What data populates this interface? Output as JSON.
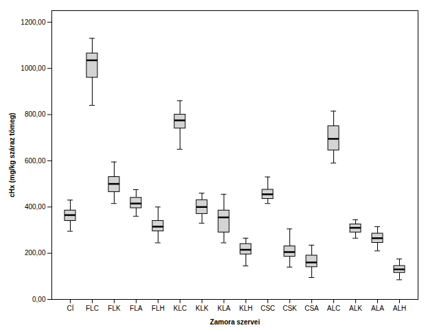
{
  "chart_data": {
    "type": "box",
    "categories": [
      "CÍ",
      "FLC",
      "FLK",
      "FLA",
      "FLH",
      "KLC",
      "KLK",
      "KLA",
      "KLH",
      "CSC",
      "CSK",
      "CSA",
      "ALC",
      "ALK",
      "ALA",
      "ALH"
    ],
    "boxes": [
      {
        "whislo": 295,
        "q1": 340,
        "med": 365,
        "q3": 385,
        "whishi": 430
      },
      {
        "whislo": 840,
        "q1": 960,
        "med": 1035,
        "q3": 1065,
        "whishi": 1130
      },
      {
        "whislo": 415,
        "q1": 465,
        "med": 500,
        "q3": 530,
        "whishi": 595
      },
      {
        "whislo": 360,
        "q1": 395,
        "med": 415,
        "q3": 440,
        "whishi": 475
      },
      {
        "whislo": 245,
        "q1": 295,
        "med": 315,
        "q3": 340,
        "whishi": 400
      },
      {
        "whislo": 650,
        "q1": 740,
        "med": 775,
        "q3": 800,
        "whishi": 860
      },
      {
        "whislo": 330,
        "q1": 370,
        "med": 400,
        "q3": 430,
        "whishi": 460
      },
      {
        "whislo": 245,
        "q1": 290,
        "med": 355,
        "q3": 385,
        "whishi": 455
      },
      {
        "whislo": 145,
        "q1": 195,
        "med": 215,
        "q3": 240,
        "whishi": 265
      },
      {
        "whislo": 415,
        "q1": 435,
        "med": 455,
        "q3": 475,
        "whishi": 530
      },
      {
        "whislo": 140,
        "q1": 185,
        "med": 205,
        "q3": 230,
        "whishi": 305
      },
      {
        "whislo": 95,
        "q1": 140,
        "med": 160,
        "q3": 190,
        "whishi": 235
      },
      {
        "whislo": 590,
        "q1": 645,
        "med": 695,
        "q3": 750,
        "whishi": 815
      },
      {
        "whislo": 265,
        "q1": 290,
        "med": 310,
        "q3": 325,
        "whishi": 345
      },
      {
        "whislo": 210,
        "q1": 245,
        "med": 265,
        "q3": 285,
        "whishi": 315
      },
      {
        "whislo": 85,
        "q1": 115,
        "med": 130,
        "q3": 145,
        "whishi": 175
      }
    ],
    "xlabel": "Zamora szervei",
    "ylabel": "cHx (mg/kg száraz tömeg)",
    "ylim": [
      0,
      1250
    ],
    "yticks": [
      {
        "value": 0,
        "label": "0,00"
      },
      {
        "value": 200,
        "label": "200,00"
      },
      {
        "value": 400,
        "label": "400,00"
      },
      {
        "value": 600,
        "label": "600,00"
      },
      {
        "value": 800,
        "label": "800,00"
      },
      {
        "value": 1000,
        "label": "1000,00"
      },
      {
        "value": 1200,
        "label": "1200,00"
      }
    ],
    "color": "#d4d4d4",
    "grid": false
  }
}
